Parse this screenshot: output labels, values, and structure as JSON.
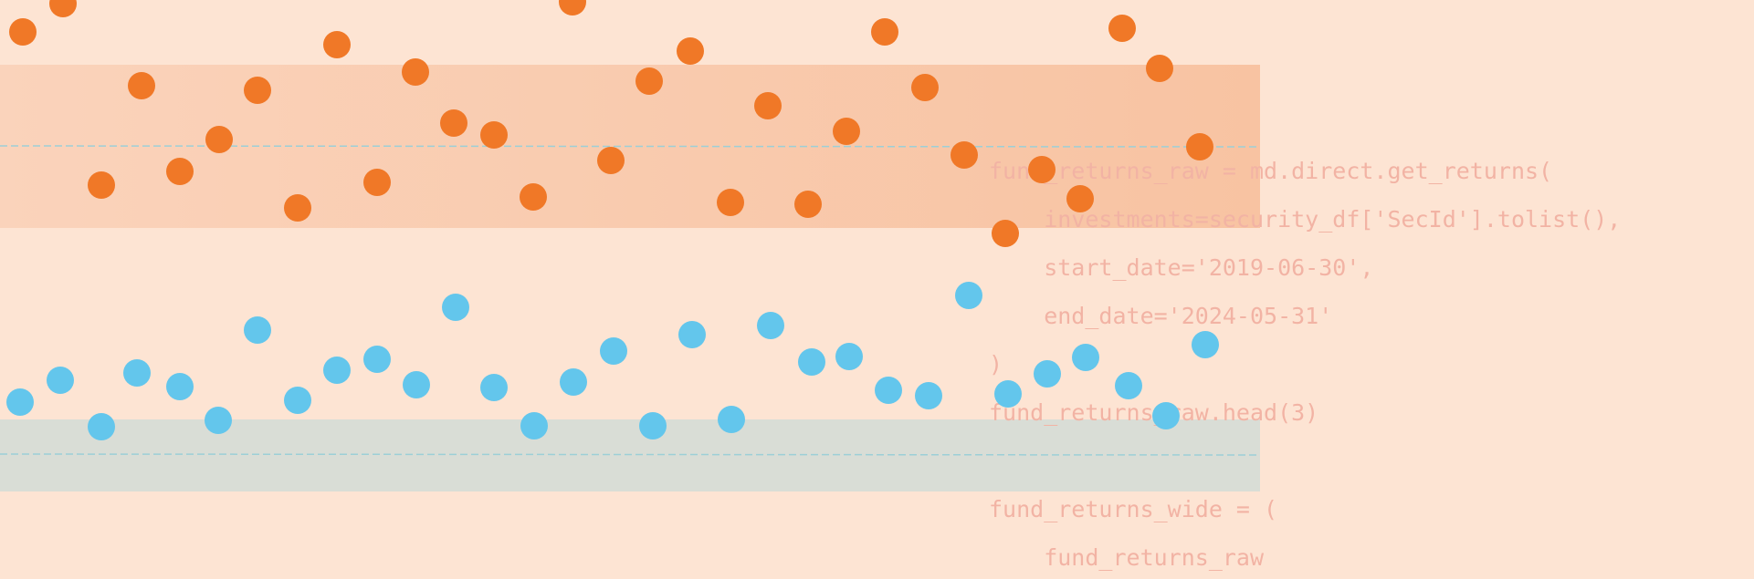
{
  "code": {
    "lines": [
      "fund_returns_raw = md.direct.get_returns(",
      "    investments=security_df['SecId'].tolist(),",
      "    start_date='2019-06-30',",
      "    end_date='2024-05-31'",
      ")",
      "fund_returns_raw.head(3)",
      "",
      "fund_returns_wide = (",
      "    fund_returns_raw"
    ]
  },
  "colors": {
    "background": "#FDE4D3",
    "orange_band": "#F8C3A2",
    "blue_band": "#D9DDD6",
    "orange_dot": "#F07827",
    "blue_dot": "#63C6EC",
    "dashed_line": "#9CCFD7",
    "code_text": "#F2B3A4"
  },
  "chart_data": {
    "type": "scatter",
    "series": [
      {
        "values_y": [
          35,
          4,
          203,
          94,
          153,
          188,
          99,
          228,
          49,
          200,
          79,
          135,
          148,
          216,
          2,
          176,
          89,
          56,
          222,
          116,
          224,
          144,
          35,
          96,
          170,
          186,
          218,
          256,
          31,
          75,
          161
        ],
        "values_x": [
          25,
          69,
          111,
          155,
          240,
          197,
          282,
          326,
          369,
          413,
          455,
          497,
          541,
          584,
          627,
          669,
          711,
          756,
          800,
          841,
          885,
          927,
          969,
          1013,
          1056,
          1141,
          1183,
          1101,
          1229,
          1270,
          1314
        ]
      },
      {
        "values_y": [
          441,
          417,
          468,
          409,
          424,
          461,
          362,
          439,
          406,
          394,
          422,
          337,
          425,
          467,
          419,
          385,
          467,
          367,
          460,
          357,
          397,
          391,
          428,
          434,
          324,
          432,
          410,
          392,
          423,
          456,
          378
        ],
        "values_x": [
          22,
          66,
          111,
          150,
          197,
          239,
          282,
          326,
          369,
          413,
          456,
          499,
          541,
          585,
          628,
          672,
          715,
          758,
          801,
          844,
          889,
          930,
          973,
          1017,
          1061,
          1104,
          1147,
          1189,
          1236,
          1277,
          1320
        ]
      }
    ]
  }
}
